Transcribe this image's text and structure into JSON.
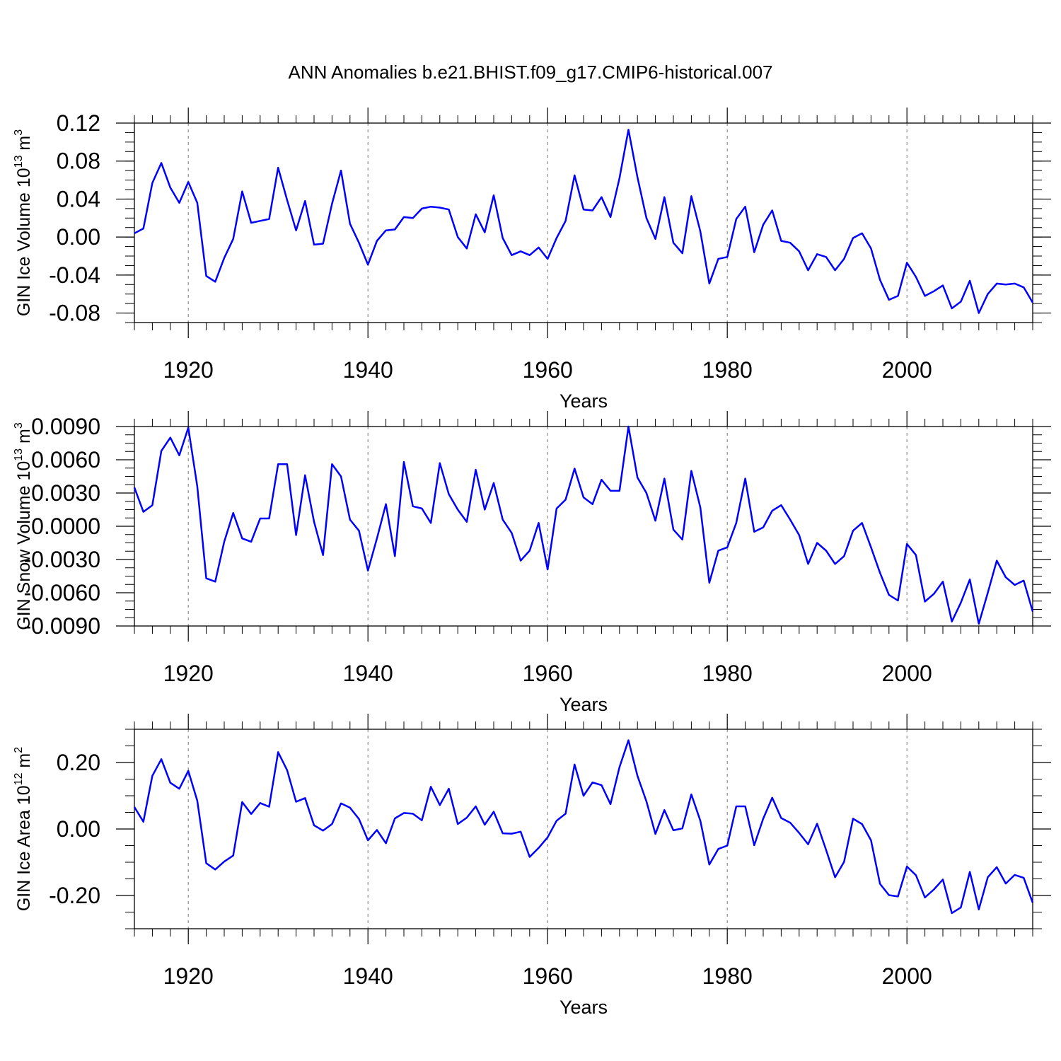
{
  "title": "ANN Anomalies b.e21.BHIST.f09_g17.CMIP6-historical.007",
  "line_color": "#0000ff",
  "chart_data": [
    {
      "type": "line",
      "ylabel": "GIN Ice Volume 10",
      "ylabel_exp": "13",
      "ylabel_unit": " m",
      "ylabel_unit_exp": "3",
      "xlabel": "Years",
      "xlim": [
        1914,
        2014
      ],
      "ylim": [
        -0.09,
        0.12
      ],
      "yticks": [
        0.12,
        0.08,
        0.04,
        0.0,
        -0.04,
        -0.08
      ],
      "yticklabels": [
        "0.12",
        "0.08",
        "0.04",
        "0.00",
        "-0.04",
        "-0.08"
      ],
      "xticks": [
        1920,
        1940,
        1960,
        1980,
        2000
      ],
      "xticklabels": [
        "1920",
        "1940",
        "1960",
        "1980",
        "2000"
      ],
      "x": [
        1914,
        1915,
        1916,
        1917,
        1918,
        1919,
        1920,
        1921,
        1922,
        1923,
        1924,
        1925,
        1926,
        1927,
        1928,
        1929,
        1930,
        1931,
        1932,
        1933,
        1934,
        1935,
        1936,
        1937,
        1938,
        1939,
        1940,
        1941,
        1942,
        1943,
        1944,
        1945,
        1946,
        1947,
        1948,
        1949,
        1950,
        1951,
        1952,
        1953,
        1954,
        1955,
        1956,
        1957,
        1958,
        1959,
        1960,
        1961,
        1962,
        1963,
        1964,
        1965,
        1966,
        1967,
        1968,
        1969,
        1970,
        1971,
        1972,
        1973,
        1974,
        1975,
        1976,
        1977,
        1978,
        1979,
        1980,
        1981,
        1982,
        1983,
        1984,
        1985,
        1986,
        1987,
        1988,
        1989,
        1990,
        1991,
        1992,
        1993,
        1994,
        1995,
        1996,
        1997,
        1998,
        1999,
        2000,
        2001,
        2002,
        2003,
        2004,
        2005,
        2006,
        2007,
        2008,
        2009,
        2010,
        2011,
        2012,
        2013,
        2014
      ],
      "values": [
        0.004,
        0.009,
        0.057,
        0.078,
        0.052,
        0.036,
        0.058,
        0.036,
        -0.041,
        -0.047,
        -0.022,
        -0.002,
        0.048,
        0.015,
        0.017,
        0.019,
        0.073,
        0.039,
        0.007,
        0.038,
        -0.008,
        -0.007,
        0.035,
        0.07,
        0.014,
        -0.006,
        -0.029,
        -0.004,
        0.007,
        0.008,
        0.021,
        0.02,
        0.03,
        0.032,
        0.031,
        0.029,
        0.0,
        -0.012,
        0.024,
        0.005,
        0.044,
        -0.001,
        -0.019,
        -0.015,
        -0.019,
        -0.011,
        -0.023,
        -0.001,
        0.017,
        0.065,
        0.029,
        0.028,
        0.042,
        0.021,
        0.062,
        0.113,
        0.063,
        0.02,
        -0.002,
        0.042,
        -0.006,
        -0.017,
        0.043,
        0.006,
        -0.049,
        -0.023,
        -0.021,
        0.019,
        0.032,
        -0.016,
        0.013,
        0.028,
        -0.004,
        -0.006,
        -0.015,
        -0.035,
        -0.018,
        -0.021,
        -0.035,
        -0.023,
        -0.001,
        0.004,
        -0.012,
        -0.045,
        -0.066,
        -0.062,
        -0.027,
        -0.042,
        -0.062,
        -0.057,
        -0.051,
        -0.075,
        -0.068,
        -0.046,
        -0.08,
        -0.06,
        -0.049,
        -0.05,
        -0.049,
        -0.053,
        -0.069
      ]
    },
    {
      "type": "line",
      "ylabel": "GIN Snow Volume 10",
      "ylabel_exp": "13",
      "ylabel_unit": " m",
      "ylabel_unit_exp": "3",
      "xlabel": "Years",
      "xlim": [
        1914,
        2014
      ],
      "ylim": [
        -0.009,
        0.009
      ],
      "yticks": [
        0.009,
        0.006,
        0.003,
        0.0,
        -0.003,
        -0.006,
        -0.009
      ],
      "yticklabels": [
        "0.0090",
        "0.0060",
        "0.0030",
        "0.0000",
        "-0.0030",
        "-0.0060",
        "-0.0090"
      ],
      "xticks": [
        1920,
        1940,
        1960,
        1980,
        2000
      ],
      "xticklabels": [
        "1920",
        "1940",
        "1960",
        "1980",
        "2000"
      ],
      "x": [
        1914,
        1915,
        1916,
        1917,
        1918,
        1919,
        1920,
        1921,
        1922,
        1923,
        1924,
        1925,
        1926,
        1927,
        1928,
        1929,
        1930,
        1931,
        1932,
        1933,
        1934,
        1935,
        1936,
        1937,
        1938,
        1939,
        1940,
        1941,
        1942,
        1943,
        1944,
        1945,
        1946,
        1947,
        1948,
        1949,
        1950,
        1951,
        1952,
        1953,
        1954,
        1955,
        1956,
        1957,
        1958,
        1959,
        1960,
        1961,
        1962,
        1963,
        1964,
        1965,
        1966,
        1967,
        1968,
        1969,
        1970,
        1971,
        1972,
        1973,
        1974,
        1975,
        1976,
        1977,
        1978,
        1979,
        1980,
        1981,
        1982,
        1983,
        1984,
        1985,
        1986,
        1987,
        1988,
        1989,
        1990,
        1991,
        1992,
        1993,
        1994,
        1995,
        1996,
        1997,
        1998,
        1999,
        2000,
        2001,
        2002,
        2003,
        2004,
        2005,
        2006,
        2007,
        2008,
        2009,
        2010,
        2011,
        2012,
        2013,
        2014
      ],
      "values": [
        0.0035,
        0.0013,
        0.0019,
        0.0068,
        0.008,
        0.0064,
        0.0089,
        0.0036,
        -0.0047,
        -0.005,
        -0.0014,
        0.0012,
        -0.0011,
        -0.0014,
        0.0007,
        0.0007,
        0.0056,
        0.0056,
        -0.0008,
        0.0046,
        0.0004,
        -0.0026,
        0.0056,
        0.0045,
        0.0006,
        -0.0004,
        -0.004,
        -0.0011,
        0.002,
        -0.0027,
        0.0058,
        0.0018,
        0.0016,
        0.0003,
        0.0057,
        0.0029,
        0.0015,
        0.0004,
        0.0051,
        0.0015,
        0.0039,
        0.0006,
        -0.0006,
        -0.0031,
        -0.0022,
        0.0003,
        -0.0039,
        0.0016,
        0.0024,
        0.0052,
        0.0026,
        0.002,
        0.0042,
        0.0032,
        0.0032,
        0.009,
        0.0044,
        0.003,
        0.0005,
        0.0043,
        -0.0003,
        -0.0012,
        0.005,
        0.0017,
        -0.0051,
        -0.0022,
        -0.0019,
        0.0003,
        0.0043,
        -0.0005,
        -0.0001,
        0.0014,
        0.0019,
        0.0006,
        -0.0008,
        -0.0034,
        -0.0015,
        -0.0022,
        -0.0034,
        -0.0027,
        -0.0004,
        0.0003,
        -0.0019,
        -0.0042,
        -0.0062,
        -0.0067,
        -0.0016,
        -0.0026,
        -0.0068,
        -0.0061,
        -0.005,
        -0.0086,
        -0.0069,
        -0.0048,
        -0.0088,
        -0.006,
        -0.0031,
        -0.0046,
        -0.0053,
        -0.0049,
        -0.0077
      ]
    },
    {
      "type": "line",
      "ylabel": "GIN Ice Area 10",
      "ylabel_exp": "12",
      "ylabel_unit": " m",
      "ylabel_unit_exp": "2",
      "xlabel": "Years",
      "xlim": [
        1914,
        2014
      ],
      "ylim": [
        -0.3,
        0.3
      ],
      "yticks": [
        0.2,
        0.0,
        -0.2
      ],
      "yticklabels": [
        "0.20",
        "0.00",
        "-0.20"
      ],
      "xticks": [
        1920,
        1940,
        1960,
        1980,
        2000
      ],
      "xticklabels": [
        "1920",
        "1940",
        "1960",
        "1980",
        "2000"
      ],
      "x": [
        1914,
        1915,
        1916,
        1917,
        1918,
        1919,
        1920,
        1921,
        1922,
        1923,
        1924,
        1925,
        1926,
        1927,
        1928,
        1929,
        1930,
        1931,
        1932,
        1933,
        1934,
        1935,
        1936,
        1937,
        1938,
        1939,
        1940,
        1941,
        1942,
        1943,
        1944,
        1945,
        1946,
        1947,
        1948,
        1949,
        1950,
        1951,
        1952,
        1953,
        1954,
        1955,
        1956,
        1957,
        1958,
        1959,
        1960,
        1961,
        1962,
        1963,
        1964,
        1965,
        1966,
        1967,
        1968,
        1969,
        1970,
        1971,
        1972,
        1973,
        1974,
        1975,
        1976,
        1977,
        1978,
        1979,
        1980,
        1981,
        1982,
        1983,
        1984,
        1985,
        1986,
        1987,
        1988,
        1989,
        1990,
        1991,
        1992,
        1993,
        1994,
        1995,
        1996,
        1997,
        1998,
        1999,
        2000,
        2001,
        2002,
        2003,
        2004,
        2005,
        2006,
        2007,
        2008,
        2009,
        2010,
        2011,
        2012,
        2013,
        2014
      ],
      "values": [
        0.066,
        0.022,
        0.16,
        0.21,
        0.139,
        0.121,
        0.175,
        0.085,
        -0.103,
        -0.122,
        -0.098,
        -0.08,
        0.081,
        0.045,
        0.078,
        0.067,
        0.231,
        0.177,
        0.082,
        0.093,
        0.011,
        -0.005,
        0.015,
        0.077,
        0.064,
        0.03,
        -0.034,
        -0.003,
        -0.043,
        0.032,
        0.048,
        0.046,
        0.026,
        0.127,
        0.072,
        0.121,
        0.015,
        0.034,
        0.068,
        0.013,
        0.052,
        -0.013,
        -0.014,
        -0.008,
        -0.084,
        -0.057,
        -0.025,
        0.025,
        0.046,
        0.194,
        0.1,
        0.14,
        0.132,
        0.075,
        0.186,
        0.267,
        0.16,
        0.083,
        -0.015,
        0.057,
        -0.004,
        0.002,
        0.104,
        0.025,
        -0.107,
        -0.06,
        -0.05,
        0.068,
        0.068,
        -0.049,
        0.031,
        0.094,
        0.033,
        0.019,
        -0.012,
        -0.046,
        0.016,
        -0.063,
        -0.145,
        -0.099,
        0.031,
        0.015,
        -0.034,
        -0.165,
        -0.199,
        -0.203,
        -0.113,
        -0.139,
        -0.206,
        -0.182,
        -0.152,
        -0.253,
        -0.236,
        -0.129,
        -0.242,
        -0.145,
        -0.115,
        -0.164,
        -0.138,
        -0.147,
        -0.222
      ]
    }
  ]
}
